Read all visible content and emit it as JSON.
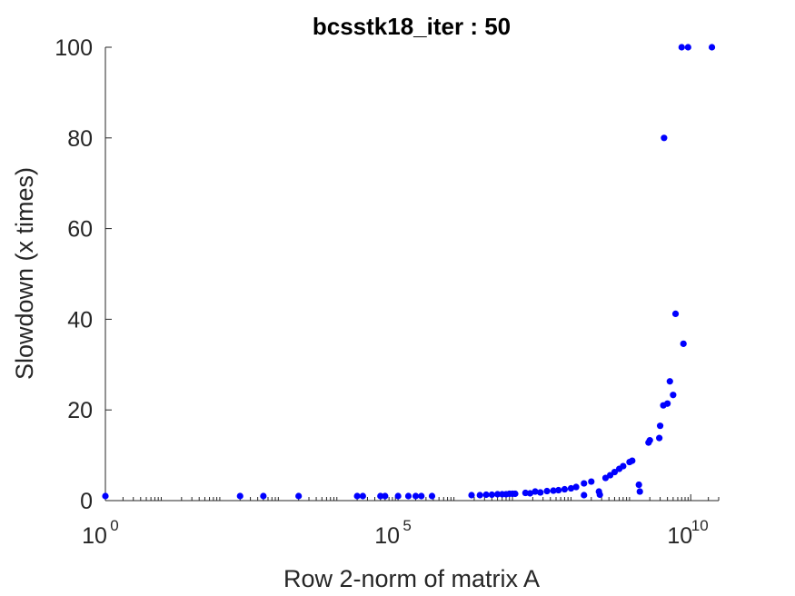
{
  "colors": {
    "marker": "#0000ff",
    "axis": "#262626"
  },
  "chart_data": {
    "type": "scatter",
    "title": "bcsstk18_iter : 50",
    "xlabel": "Row 2-norm of matrix A",
    "ylabel": "Slowdown (x times)",
    "xscale": "log",
    "xlim": [
      1,
      30000000000
    ],
    "ylim": [
      0,
      100
    ],
    "x_ticks": [
      {
        "base": "10",
        "exp": "0",
        "value": 1
      },
      {
        "base": "10",
        "exp": "5",
        "value": 100000
      },
      {
        "base": "10",
        "exp": "10",
        "value": 10000000000
      }
    ],
    "y_ticks": [
      0,
      20,
      40,
      60,
      80,
      100
    ],
    "grid": false,
    "series": [
      {
        "color": "#0000ff",
        "points": [
          [
            1,
            1.0
          ],
          [
            200,
            1.0
          ],
          [
            500,
            1.0
          ],
          [
            2000,
            1.0
          ],
          [
            20000,
            1.0
          ],
          [
            25000,
            1.0
          ],
          [
            50000,
            1.0
          ],
          [
            60000,
            1.0
          ],
          [
            100000,
            1.0
          ],
          [
            150000,
            1.0
          ],
          [
            200000,
            1.0
          ],
          [
            250000,
            1.0
          ],
          [
            380000,
            1.0
          ],
          [
            1800000,
            1.2
          ],
          [
            2500000,
            1.2
          ],
          [
            3200000,
            1.3
          ],
          [
            4000000,
            1.3
          ],
          [
            5000000,
            1.4
          ],
          [
            6000000,
            1.4
          ],
          [
            7000000,
            1.4
          ],
          [
            8000000,
            1.5
          ],
          [
            9000000,
            1.5
          ],
          [
            10000000,
            1.5
          ],
          [
            15000000,
            1.7
          ],
          [
            18000000,
            1.6
          ],
          [
            22000000,
            2.0
          ],
          [
            27000000,
            1.8
          ],
          [
            35000000,
            2.1
          ],
          [
            45000000,
            2.2
          ],
          [
            55000000,
            2.3
          ],
          [
            70000000,
            2.5
          ],
          [
            90000000,
            2.7
          ],
          [
            110000000,
            3.0
          ],
          [
            150000000,
            1.2
          ],
          [
            150000000,
            3.8
          ],
          [
            200000000,
            4.2
          ],
          [
            270000000,
            2.0
          ],
          [
            280000000,
            1.3
          ],
          [
            350000000,
            5.0
          ],
          [
            420000000,
            5.6
          ],
          [
            500000000,
            6.3
          ],
          [
            600000000,
            7.0
          ],
          [
            700000000,
            7.6
          ],
          [
            900000000,
            8.5
          ],
          [
            1000000000,
            8.8
          ],
          [
            1300000000,
            3.5
          ],
          [
            1350000000,
            2.0
          ],
          [
            1900000000,
            12.8
          ],
          [
            2000000000,
            13.3
          ],
          [
            2900000000,
            13.8
          ],
          [
            3000000000,
            16.5
          ],
          [
            3400000000,
            21.0
          ],
          [
            3500000000,
            80.0
          ],
          [
            4000000000,
            21.4
          ],
          [
            4400000000,
            26.3
          ],
          [
            5000000000,
            23.3
          ],
          [
            5500000000,
            41.2
          ],
          [
            7000000000,
            100.0
          ],
          [
            7500000000,
            34.6
          ],
          [
            9000000000,
            100.0
          ],
          [
            23000000000,
            100.0
          ]
        ]
      }
    ]
  }
}
